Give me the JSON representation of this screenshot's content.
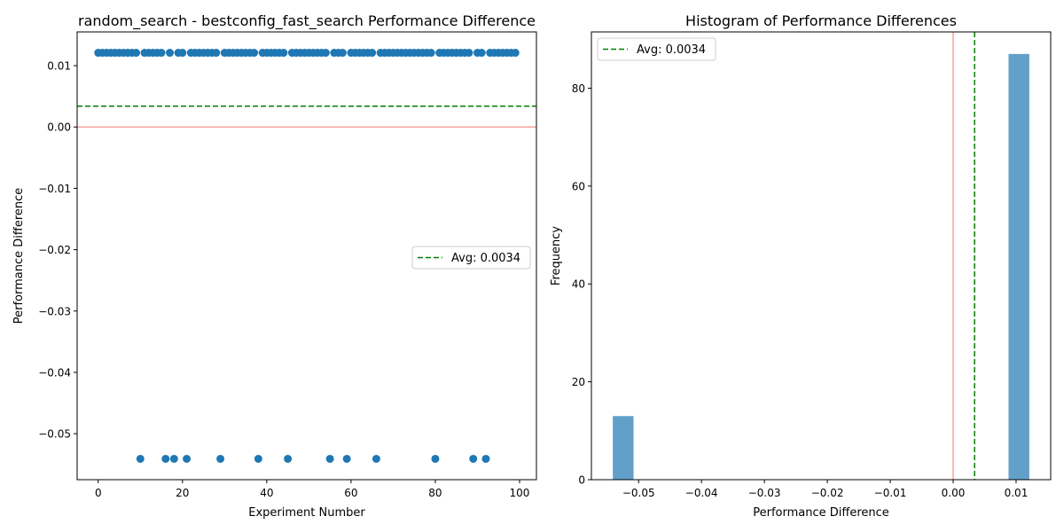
{
  "chart_data": [
    {
      "type": "scatter",
      "title": "random_search - bestconfig_fast_search Performance Difference",
      "xlabel": "Experiment Number",
      "ylabel": "Performance Difference",
      "xlim": [
        -5,
        104
      ],
      "ylim": [
        -0.0575,
        0.0155
      ],
      "xticks": [
        0,
        20,
        40,
        60,
        80,
        100
      ],
      "yticks": [
        0.01,
        0.0,
        -0.01,
        -0.02,
        -0.03,
        -0.04,
        -0.05
      ],
      "xtick_labels": [
        "0",
        "20",
        "40",
        "60",
        "80",
        "100"
      ],
      "ytick_labels": [
        "0.01",
        "0.00",
        "−0.01",
        "−0.02",
        "−0.03",
        "−0.04",
        "−0.05"
      ],
      "high_value": 0.0121,
      "low_value": -0.0541,
      "low_indices": [
        10,
        16,
        18,
        21,
        29,
        38,
        45,
        55,
        59,
        66,
        80,
        89,
        92
      ],
      "n_points": 100,
      "marker_color": "#1f77b4",
      "hlines": [
        {
          "y": 0.0034,
          "color": "#008000",
          "style": "dashed"
        },
        {
          "y": 0.0,
          "color": "#f4a3a3",
          "style": "solid"
        }
      ],
      "legend": {
        "label": "Avg: 0.0034",
        "placement": "center-right"
      },
      "grid": false
    },
    {
      "type": "bar",
      "title": "Histogram of Performance Differences",
      "xlabel": "Performance Difference",
      "ylabel": "Frequency",
      "xlim": [
        -0.0575,
        0.0155
      ],
      "ylim": [
        0,
        91.5
      ],
      "xticks": [
        -0.05,
        -0.04,
        -0.03,
        -0.02,
        -0.01,
        0.0,
        0.01
      ],
      "yticks": [
        0,
        20,
        40,
        60,
        80
      ],
      "xtick_labels": [
        "−0.05",
        "−0.04",
        "−0.03",
        "−0.02",
        "−0.01",
        "0.00",
        "0.01"
      ],
      "ytick_labels": [
        "0",
        "20",
        "40",
        "60",
        "80"
      ],
      "bins": [
        {
          "x0": -0.0541,
          "x1": -0.0508,
          "count": 13
        },
        {
          "x0": 0.0088,
          "x1": 0.0121,
          "count": 87
        }
      ],
      "bar_color": "#62a0ca",
      "vlines": [
        {
          "x": 0.0034,
          "color": "#008000",
          "style": "dashed"
        },
        {
          "x": 0.0,
          "color": "#f4a3a3",
          "style": "solid"
        }
      ],
      "legend": {
        "label": "Avg: 0.0034",
        "placement": "top-left"
      },
      "grid": false
    }
  ]
}
